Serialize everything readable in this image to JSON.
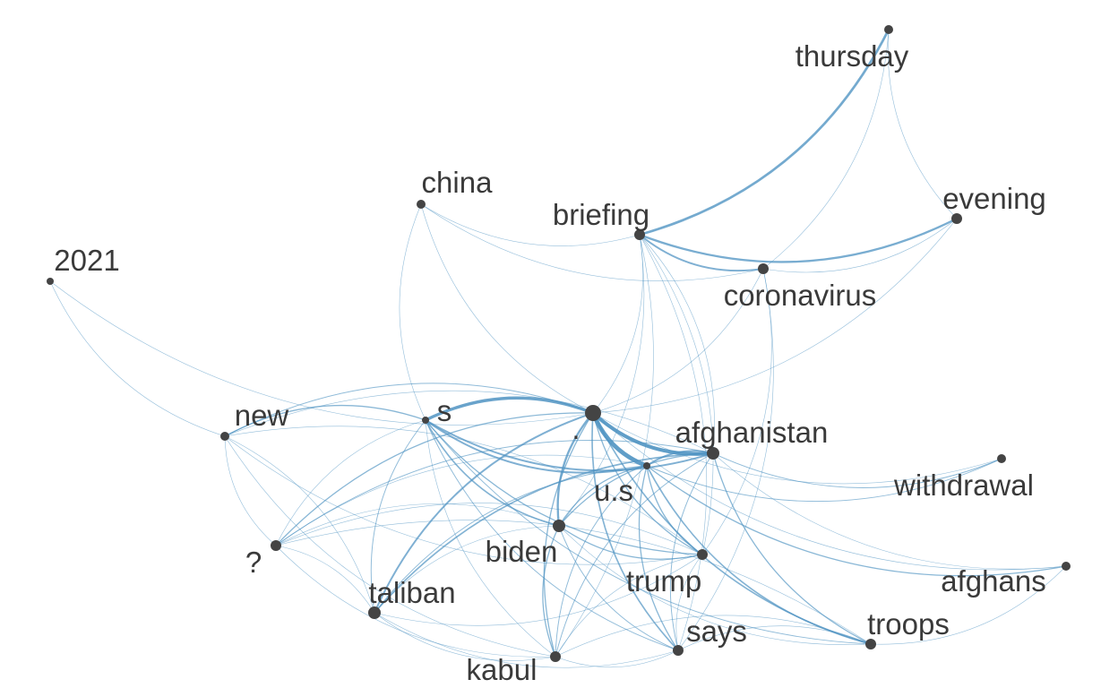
{
  "nodes": [
    {
      "id": "thursday",
      "label": "thursday",
      "size": 5
    },
    {
      "id": "china",
      "label": "china",
      "size": 5
    },
    {
      "id": "briefing",
      "label": "briefing",
      "size": 6
    },
    {
      "id": "evening",
      "label": "evening",
      "size": 6
    },
    {
      "id": "2021",
      "label": "2021",
      "size": 4
    },
    {
      "id": "coronavirus",
      "label": "coronavirus",
      "size": 6
    },
    {
      "id": "new",
      "label": "new",
      "size": 5
    },
    {
      "id": "s",
      "label": "s",
      "size": 4
    },
    {
      "id": "dot",
      "label": ".",
      "size": 9
    },
    {
      "id": "afghanistan",
      "label": "afghanistan",
      "size": 7
    },
    {
      "id": "us",
      "label": "u.s",
      "size": 4
    },
    {
      "id": "withdrawal",
      "label": "withdrawal",
      "size": 5
    },
    {
      "id": "biden",
      "label": "biden",
      "size": 7
    },
    {
      "id": "question",
      "label": "?",
      "size": 6
    },
    {
      "id": "trump",
      "label": "trump",
      "size": 6
    },
    {
      "id": "afghans",
      "label": "afghans",
      "size": 5
    },
    {
      "id": "taliban",
      "label": "taliban",
      "size": 7
    },
    {
      "id": "says",
      "label": "says",
      "size": 6
    },
    {
      "id": "troops",
      "label": "troops",
      "size": 6
    },
    {
      "id": "kabul",
      "label": "kabul",
      "size": 6
    }
  ],
  "edges": [
    [
      "briefing",
      "thursday",
      4
    ],
    [
      "briefing",
      "evening",
      3.5
    ],
    [
      "briefing",
      "coronavirus",
      3
    ],
    [
      "coronavirus",
      "evening",
      1
    ],
    [
      "coronavirus",
      "thursday",
      1
    ],
    [
      "thursday",
      "evening",
      1
    ],
    [
      "china",
      "briefing",
      1
    ],
    [
      "china",
      "coronavirus",
      1
    ],
    [
      "china",
      "dot",
      1
    ],
    [
      "china",
      "s",
      1
    ],
    [
      "2021",
      "new",
      1
    ],
    [
      "2021",
      "dot",
      1
    ],
    [
      "dot",
      "afghanistan",
      6
    ],
    [
      "dot",
      "us",
      7
    ],
    [
      "dot",
      "s",
      5
    ],
    [
      "dot",
      "biden",
      3.5
    ],
    [
      "dot",
      "taliban",
      3
    ],
    [
      "dot",
      "troops",
      2.5
    ],
    [
      "dot",
      "trump",
      2
    ],
    [
      "dot",
      "says",
      2.5
    ],
    [
      "dot",
      "kabul",
      2
    ],
    [
      "dot",
      "question",
      2
    ],
    [
      "dot",
      "new",
      1.5
    ],
    [
      "dot",
      "withdrawal",
      1
    ],
    [
      "dot",
      "afghans",
      1
    ],
    [
      "dot",
      "briefing",
      1
    ],
    [
      "dot",
      "coronavirus",
      1
    ],
    [
      "dot",
      "evening",
      1
    ],
    [
      "s",
      "afghanistan",
      3
    ],
    [
      "s",
      "us",
      3
    ],
    [
      "s",
      "new",
      2
    ],
    [
      "s",
      "biden",
      2.5
    ],
    [
      "s",
      "trump",
      2
    ],
    [
      "s",
      "taliban",
      1.5
    ],
    [
      "s",
      "says",
      1.5
    ],
    [
      "s",
      "troops",
      1.5
    ],
    [
      "s",
      "kabul",
      1
    ],
    [
      "s",
      "question",
      1
    ],
    [
      "afghanistan",
      "us",
      3
    ],
    [
      "afghanistan",
      "taliban",
      2.5
    ],
    [
      "afghanistan",
      "biden",
      2
    ],
    [
      "afghanistan",
      "troops",
      2
    ],
    [
      "afghanistan",
      "withdrawal",
      1.5
    ],
    [
      "afghanistan",
      "kabul",
      1.5
    ],
    [
      "afghanistan",
      "afghans",
      1
    ],
    [
      "afghanistan",
      "question",
      1.5
    ],
    [
      "afghanistan",
      "new",
      1
    ],
    [
      "afghanistan",
      "says",
      1.5
    ],
    [
      "afghanistan",
      "briefing",
      1
    ],
    [
      "us",
      "biden",
      2
    ],
    [
      "us",
      "troops",
      2.5
    ],
    [
      "us",
      "trump",
      2
    ],
    [
      "us",
      "withdrawal",
      1.5
    ],
    [
      "us",
      "afghans",
      2
    ],
    [
      "us",
      "kabul",
      1.5
    ],
    [
      "us",
      "says",
      2
    ],
    [
      "us",
      "taliban",
      1.5
    ],
    [
      "us",
      "question",
      1
    ],
    [
      "biden",
      "trump",
      2
    ],
    [
      "biden",
      "kabul",
      2
    ],
    [
      "biden",
      "says",
      1.5
    ],
    [
      "biden",
      "troops",
      1
    ],
    [
      "biden",
      "question",
      1
    ],
    [
      "biden",
      "briefing",
      1
    ],
    [
      "biden",
      "taliban",
      1
    ],
    [
      "trump",
      "briefing",
      1
    ],
    [
      "trump",
      "coronavirus",
      1
    ],
    [
      "trump",
      "says",
      1
    ],
    [
      "trump",
      "kabul",
      1
    ],
    [
      "trump",
      "question",
      1
    ],
    [
      "trump",
      "new",
      1
    ],
    [
      "taliban",
      "kabul",
      1
    ],
    [
      "taliban",
      "new",
      1
    ],
    [
      "taliban",
      "question",
      1
    ],
    [
      "taliban",
      "says",
      1
    ],
    [
      "taliban",
      "trump",
      1
    ],
    [
      "troops",
      "says",
      1
    ],
    [
      "troops",
      "kabul",
      1
    ],
    [
      "troops",
      "afghans",
      1
    ],
    [
      "troops",
      "question",
      1
    ],
    [
      "new",
      "question",
      1
    ],
    [
      "new",
      "kabul",
      1
    ],
    [
      "new",
      "trump",
      1
    ],
    [
      "kabul",
      "says",
      1
    ],
    [
      "says",
      "briefing",
      1
    ],
    [
      "says",
      "coronavirus",
      1
    ],
    [
      "kabul",
      "briefing",
      1
    ],
    [
      "question",
      "kabul",
      1
    ]
  ],
  "colors": {
    "edge": "#4f93c2",
    "node": "#444444",
    "label": "#3a3a3a",
    "background": "#ffffff"
  }
}
